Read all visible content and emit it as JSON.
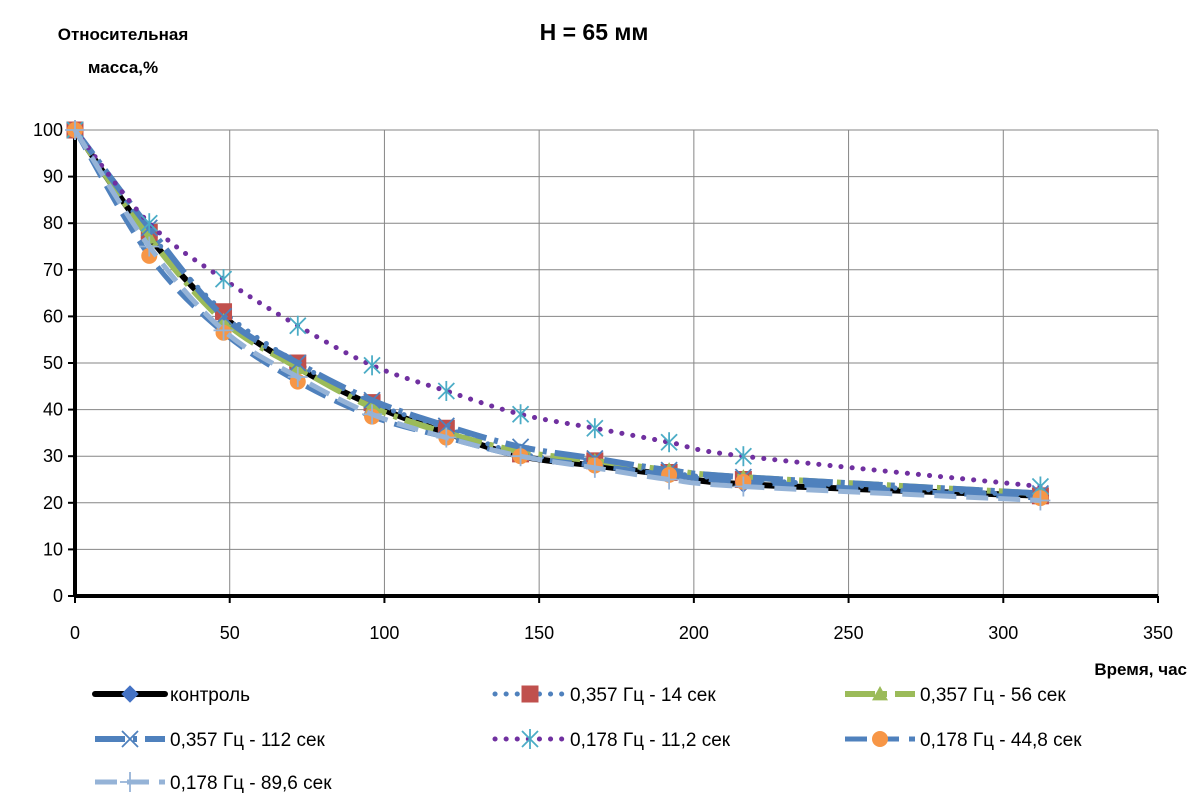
{
  "chart_data": {
    "type": "line",
    "title": "H = 65 мм",
    "ylabel": "Относительная масса,%",
    "xlabel": "Время, час",
    "xlim": [
      0,
      350
    ],
    "ylim": [
      0,
      100
    ],
    "xticks": [
      0,
      50,
      100,
      150,
      200,
      250,
      300,
      350
    ],
    "yticks": [
      0,
      10,
      20,
      30,
      40,
      50,
      60,
      70,
      80,
      90,
      100
    ],
    "grid": true,
    "legend_position": "bottom",
    "series": [
      {
        "name": "контроль",
        "color": "#000000",
        "marker": "diamond",
        "marker_color": "#4472C4",
        "line_style": "solid",
        "x": [
          0,
          24,
          48,
          72,
          96,
          120,
          144,
          168,
          192,
          216,
          312
        ],
        "y": [
          100,
          77,
          60,
          49,
          41,
          35,
          30,
          28,
          26,
          24,
          21.5
        ]
      },
      {
        "name": "0,357 Гц - 14 сек",
        "color": "#4F81BD",
        "marker": "square",
        "marker_color": "#C0504D",
        "line_style": "dotted",
        "x": [
          0,
          24,
          48,
          72,
          96,
          120,
          144,
          168,
          192,
          216,
          312
        ],
        "y": [
          100,
          78,
          61,
          50,
          41.5,
          36,
          30.5,
          29,
          26.5,
          25,
          21.5
        ]
      },
      {
        "name": "0,357 Гц - 56 сек",
        "color": "#9BBB59",
        "marker": "triangle",
        "marker_color": "#9BBB59",
        "line_style": "long-dash-dot",
        "x": [
          0,
          24,
          48,
          72,
          96,
          120,
          144,
          168,
          192,
          216,
          312
        ],
        "y": [
          100,
          77,
          59,
          49,
          40.5,
          35,
          31,
          29,
          27,
          25.5,
          22
        ]
      },
      {
        "name": "0,357 Гц - 112 сек",
        "color": "#4F81BD",
        "marker": "x",
        "marker_color": "#4F81BD",
        "line_style": "long-dash-dot",
        "x": [
          0,
          24,
          48,
          72,
          96,
          120,
          144,
          168,
          192,
          216,
          312
        ],
        "y": [
          100,
          79,
          60,
          50,
          42,
          36.5,
          32,
          29.5,
          27,
          25.5,
          22
        ]
      },
      {
        "name": "0,178 Гц - 11,2 сек",
        "color": "#7030A0",
        "marker": "star",
        "marker_color": "#4BACC6",
        "line_style": "dotted",
        "x": [
          0,
          24,
          48,
          72,
          96,
          120,
          144,
          168,
          192,
          216,
          312
        ],
        "y": [
          100,
          80,
          68,
          58,
          49.5,
          44,
          39,
          36,
          33,
          30,
          23.5
        ]
      },
      {
        "name": "0,178 Гц - 44,8 сек",
        "color": "#4F81BD",
        "marker": "circle",
        "marker_color": "#F79646",
        "line_style": "dash",
        "x": [
          0,
          24,
          48,
          72,
          96,
          120,
          144,
          168,
          192,
          216,
          312
        ],
        "y": [
          100,
          73,
          56.5,
          46,
          38.5,
          34,
          30,
          28,
          26,
          24.5,
          21
        ]
      },
      {
        "name": "0,178 Гц - 89,6 сек",
        "color": "#95B3D7",
        "marker": "plus",
        "marker_color": "#95B3D7",
        "line_style": "dash",
        "x": [
          0,
          24,
          48,
          72,
          96,
          120,
          144,
          168,
          192,
          216,
          312
        ],
        "y": [
          100,
          75,
          57,
          47,
          39,
          34,
          30,
          27.5,
          25,
          23.5,
          20.5
        ]
      }
    ]
  }
}
